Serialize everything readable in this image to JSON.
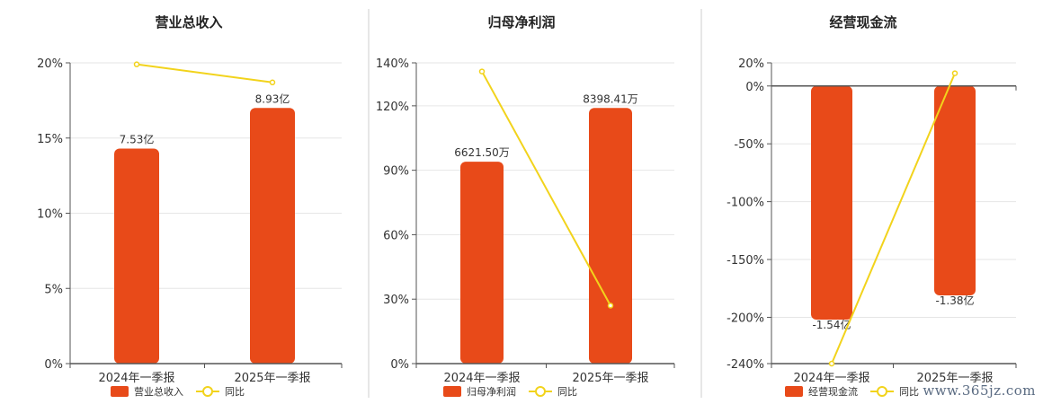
{
  "watermark": "www.365jz.com",
  "colors": {
    "bar": "#E84A19",
    "line": "#F2D31C",
    "divider": "#cfcfcf",
    "axis": "#555555",
    "grid": "#e6e6e6"
  },
  "chart_data": [
    {
      "type": "bar",
      "title": "营业总收入",
      "categories": [
        "2024年一季报",
        "2025年一季报"
      ],
      "bar_axis_max": 20,
      "series": [
        {
          "name": "营业总收入",
          "kind": "bar",
          "values": [
            14.3,
            17.0
          ],
          "labels": [
            "7.53亿",
            "8.93亿"
          ]
        },
        {
          "name": "同比",
          "kind": "line",
          "values": [
            19.9,
            18.7
          ]
        }
      ],
      "yticks": [
        "0%",
        "5%",
        "10%",
        "15%",
        "20%"
      ],
      "ylim": [
        0,
        20
      ],
      "grid": true,
      "legend": "bottom"
    },
    {
      "type": "bar",
      "title": "归母净利润",
      "categories": [
        "2024年一季报",
        "2025年一季报"
      ],
      "series": [
        {
          "name": "归母净利润",
          "kind": "bar",
          "values": [
            94,
            119
          ],
          "labels": [
            "6621.50万",
            "8398.41万"
          ]
        },
        {
          "name": "同比",
          "kind": "line",
          "values": [
            136,
            27
          ]
        }
      ],
      "yticks": [
        "0%",
        "30%",
        "60%",
        "90%",
        "120%",
        "140%"
      ],
      "ylim": [
        0,
        140
      ],
      "grid": true,
      "legend": "bottom"
    },
    {
      "type": "bar",
      "title": "经营现金流",
      "categories": [
        "2024年一季报",
        "2025年一季报"
      ],
      "series": [
        {
          "name": "经营现金流",
          "kind": "bar",
          "values": [
            -202,
            -181
          ],
          "labels": [
            "-1.54亿",
            "-1.38亿"
          ]
        },
        {
          "name": "同比",
          "kind": "line",
          "values": [
            -240,
            11
          ]
        }
      ],
      "yticks": [
        "20%",
        "0%",
        "-50%",
        "-100%",
        "-150%",
        "-200%",
        "-240%"
      ],
      "ylim": [
        -240,
        20
      ],
      "grid": true,
      "legend": "bottom"
    }
  ]
}
